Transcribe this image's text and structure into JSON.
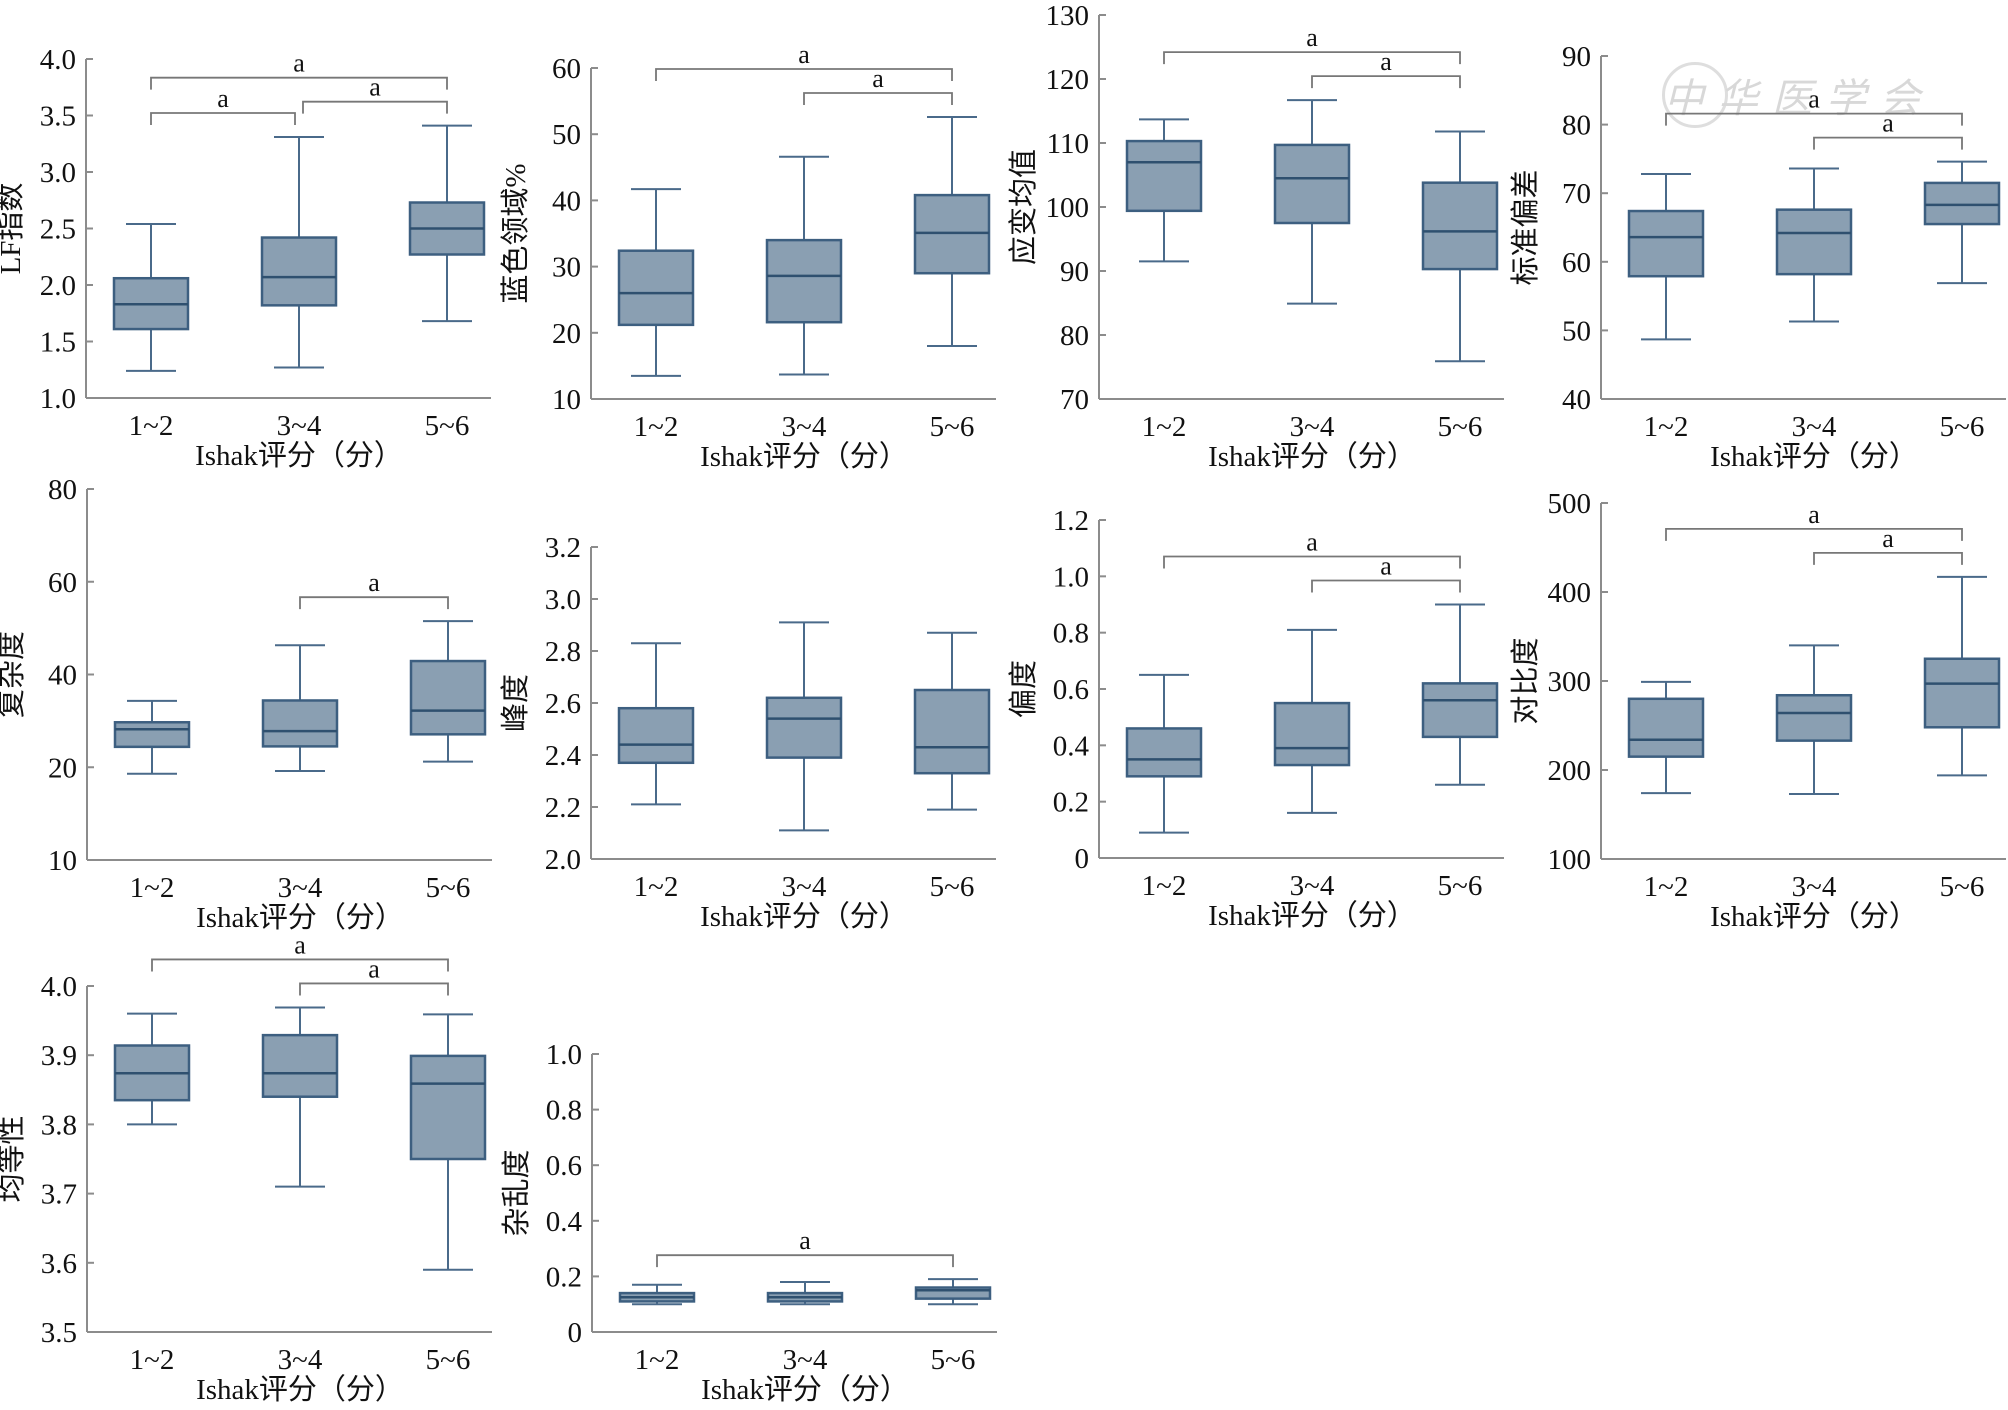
{
  "watermark": {
    "text": "中华医学会"
  },
  "chart_data": [
    {
      "type": "box",
      "id": "lf_index",
      "ylabel": "LF指数",
      "xlabel": "Ishak评分（分）",
      "categories": [
        "1~2",
        "3~4",
        "5~6"
      ],
      "yticks": [
        1.0,
        1.5,
        2.0,
        2.5,
        3.0,
        3.5,
        4.0
      ],
      "ytick_labels": [
        "1.0",
        "1.5",
        "2.0",
        "2.5",
        "3.0",
        "3.5",
        "4.0"
      ],
      "ylim": [
        1.0,
        4.0
      ],
      "boxes": [
        {
          "min": 1.24,
          "q1": 1.61,
          "median": 1.83,
          "q3": 2.06,
          "max": 2.54
        },
        {
          "min": 1.27,
          "q1": 1.82,
          "median": 2.07,
          "q3": 2.42,
          "max": 3.31
        },
        {
          "min": 1.68,
          "q1": 2.27,
          "median": 2.5,
          "q3": 2.73,
          "max": 3.41
        }
      ],
      "significance": [
        {
          "from": 0,
          "to": 2,
          "label": "a",
          "level": 2
        },
        {
          "from": 0,
          "to": 1,
          "label": "a",
          "level": 1
        },
        {
          "from": 1,
          "to": 2,
          "label": "a",
          "level": 1
        }
      ]
    },
    {
      "type": "box",
      "id": "blue_domain",
      "ylabel": "蓝色领域%",
      "xlabel": "Ishak评分（分）",
      "categories": [
        "1~2",
        "3~4",
        "5~6"
      ],
      "yticks": [
        10,
        20,
        30,
        40,
        50,
        60
      ],
      "ytick_labels": [
        "10",
        "20",
        "30",
        "40",
        "50",
        "60"
      ],
      "ylim": [
        10,
        60
      ],
      "boxes": [
        {
          "min": 13.5,
          "q1": 21.2,
          "median": 26.0,
          "q3": 32.4,
          "max": 41.7
        },
        {
          "min": 13.7,
          "q1": 21.6,
          "median": 28.6,
          "q3": 34.0,
          "max": 46.6
        },
        {
          "min": 18.0,
          "q1": 29.0,
          "median": 35.1,
          "q3": 40.8,
          "max": 52.6
        }
      ],
      "significance": [
        {
          "from": 0,
          "to": 2,
          "label": "a",
          "level": 2
        },
        {
          "from": 1,
          "to": 2,
          "label": "a",
          "level": 1
        }
      ]
    },
    {
      "type": "box",
      "id": "strain_mean",
      "ylabel": "应变均值",
      "xlabel": "Ishak评分（分）",
      "categories": [
        "1~2",
        "3~4",
        "5~6"
      ],
      "yticks": [
        70,
        80,
        90,
        100,
        110,
        120,
        130
      ],
      "ytick_labels": [
        "70",
        "80",
        "90",
        "100",
        "110",
        "120",
        "130"
      ],
      "ylim": [
        70,
        130
      ],
      "boxes": [
        {
          "min": 91.5,
          "q1": 99.4,
          "median": 107.0,
          "q3": 110.3,
          "max": 113.7
        },
        {
          "min": 84.9,
          "q1": 97.5,
          "median": 104.5,
          "q3": 109.7,
          "max": 116.7
        },
        {
          "min": 75.9,
          "q1": 90.3,
          "median": 96.2,
          "q3": 103.8,
          "max": 111.8
        }
      ],
      "significance": [
        {
          "from": 0,
          "to": 2,
          "label": "a",
          "level": 2
        },
        {
          "from": 1,
          "to": 2,
          "label": "a",
          "level": 1
        }
      ]
    },
    {
      "type": "box",
      "id": "std_dev",
      "ylabel": "标准偏差",
      "xlabel": "Ishak评分（分）",
      "categories": [
        "1~2",
        "3~4",
        "5~6"
      ],
      "yticks": [
        40,
        50,
        60,
        70,
        80,
        90
      ],
      "ytick_labels": [
        "40",
        "50",
        "60",
        "70",
        "80",
        "90"
      ],
      "ylim": [
        40,
        90
      ],
      "boxes": [
        {
          "min": 48.7,
          "q1": 57.9,
          "median": 63.6,
          "q3": 67.4,
          "max": 72.8
        },
        {
          "min": 51.3,
          "q1": 58.2,
          "median": 64.2,
          "q3": 67.6,
          "max": 73.6
        },
        {
          "min": 56.9,
          "q1": 65.5,
          "median": 68.3,
          "q3": 71.5,
          "max": 74.6
        }
      ],
      "significance": [
        {
          "from": 0,
          "to": 2,
          "label": "a",
          "level": 2
        },
        {
          "from": 1,
          "to": 2,
          "label": "a",
          "level": 1
        }
      ]
    },
    {
      "type": "box",
      "id": "complexity",
      "ylabel": "复杂度",
      "xlabel": "Ishak评分（分）",
      "categories": [
        "1~2",
        "3~4",
        "5~6"
      ],
      "yticks": [
        10,
        20,
        40,
        60,
        80
      ],
      "ytick_labels": [
        "10",
        "20",
        "40",
        "60",
        "80"
      ],
      "ylim": [
        10,
        80
      ],
      "axis_break": true,
      "boxes": [
        {
          "min": 19.3,
          "q1": 24.4,
          "median": 28.2,
          "q3": 29.7,
          "max": 34.3
        },
        {
          "min": 19.6,
          "q1": 24.5,
          "median": 27.8,
          "q3": 34.4,
          "max": 46.3
        },
        {
          "min": 21.2,
          "q1": 27.1,
          "median": 32.2,
          "q3": 42.9,
          "max": 51.5
        }
      ],
      "significance": [
        {
          "from": 1,
          "to": 2,
          "label": "a",
          "level": 1
        }
      ]
    },
    {
      "type": "box",
      "id": "kurtosis",
      "ylabel": "峰度",
      "xlabel": "Ishak评分（分）",
      "categories": [
        "1~2",
        "3~4",
        "5~6"
      ],
      "yticks": [
        2.0,
        2.2,
        2.4,
        2.6,
        2.8,
        3.0,
        3.2
      ],
      "ytick_labels": [
        "2.0",
        "2.2",
        "2.4",
        "2.6",
        "2.8",
        "3.0",
        "3.2"
      ],
      "ylim": [
        2.0,
        3.2
      ],
      "boxes": [
        {
          "min": 2.21,
          "q1": 2.37,
          "median": 2.44,
          "q3": 2.58,
          "max": 2.83
        },
        {
          "min": 2.11,
          "q1": 2.39,
          "median": 2.54,
          "q3": 2.62,
          "max": 2.91
        },
        {
          "min": 2.19,
          "q1": 2.33,
          "median": 2.43,
          "q3": 2.65,
          "max": 2.87
        }
      ],
      "significance": []
    },
    {
      "type": "box",
      "id": "skewness",
      "ylabel": "偏度",
      "xlabel": "Ishak评分（分）",
      "categories": [
        "1~2",
        "3~4",
        "5~6"
      ],
      "yticks": [
        0,
        0.2,
        0.4,
        0.6,
        0.8,
        1.0,
        1.2
      ],
      "ytick_labels": [
        "0",
        "0.2",
        "0.4",
        "0.6",
        "0.8",
        "1.0",
        "1.2"
      ],
      "ylim": [
        0,
        1.2
      ],
      "boxes": [
        {
          "min": 0.09,
          "q1": 0.29,
          "median": 0.35,
          "q3": 0.46,
          "max": 0.65
        },
        {
          "min": 0.16,
          "q1": 0.33,
          "median": 0.39,
          "q3": 0.55,
          "max": 0.81
        },
        {
          "min": 0.26,
          "q1": 0.43,
          "median": 0.56,
          "q3": 0.62,
          "max": 0.9
        }
      ],
      "significance": [
        {
          "from": 0,
          "to": 2,
          "label": "a",
          "level": 2
        },
        {
          "from": 1,
          "to": 2,
          "label": "a",
          "level": 1
        }
      ]
    },
    {
      "type": "box",
      "id": "contrast",
      "ylabel": "对比度",
      "xlabel": "Ishak评分（分）",
      "categories": [
        "1~2",
        "3~4",
        "5~6"
      ],
      "yticks": [
        100,
        200,
        300,
        400,
        500
      ],
      "ytick_labels": [
        "100",
        "200",
        "300",
        "400",
        "500"
      ],
      "ylim": [
        100,
        500
      ],
      "boxes": [
        {
          "min": 174,
          "q1": 215,
          "median": 234,
          "q3": 280,
          "max": 299
        },
        {
          "min": 173,
          "q1": 233,
          "median": 264,
          "q3": 284,
          "max": 340
        },
        {
          "min": 194,
          "q1": 248,
          "median": 297,
          "q3": 325,
          "max": 417
        }
      ],
      "significance": [
        {
          "from": 0,
          "to": 2,
          "label": "a",
          "level": 2
        },
        {
          "from": 1,
          "to": 2,
          "label": "a",
          "level": 1
        }
      ]
    },
    {
      "type": "box",
      "id": "homogeneity",
      "ylabel": "均等性",
      "xlabel": "Ishak评分（分）",
      "categories": [
        "1~2",
        "3~4",
        "5~6"
      ],
      "yticks": [
        3.5,
        3.6,
        3.7,
        3.8,
        3.9,
        4.0
      ],
      "ytick_labels": [
        "3.5",
        "3.6",
        "3.7",
        "3.8",
        "3.9",
        "4.0"
      ],
      "ylim": [
        3.5,
        4.0
      ],
      "boxes": [
        {
          "min": 3.8,
          "q1": 3.835,
          "median": 3.874,
          "q3": 3.914,
          "max": 3.96
        },
        {
          "min": 3.71,
          "q1": 3.84,
          "median": 3.874,
          "q3": 3.929,
          "max": 3.969
        },
        {
          "min": 3.59,
          "q1": 3.75,
          "median": 3.859,
          "q3": 3.899,
          "max": 3.959
        }
      ],
      "significance": [
        {
          "from": 0,
          "to": 2,
          "label": "a",
          "level": 2
        },
        {
          "from": 1,
          "to": 2,
          "label": "a",
          "level": 1
        }
      ]
    },
    {
      "type": "box",
      "id": "clutter",
      "ylabel": "杂乱度",
      "xlabel": "Ishak评分（分）",
      "categories": [
        "1~2",
        "3~4",
        "5~6"
      ],
      "yticks": [
        0,
        0.2,
        0.4,
        0.6,
        0.8,
        1.0
      ],
      "ytick_labels": [
        "0",
        "0.2",
        "0.4",
        "0.6",
        "0.8",
        "1.0"
      ],
      "ylim": [
        0,
        1.0
      ],
      "boxes": [
        {
          "min": 0.1,
          "q1": 0.11,
          "median": 0.125,
          "q3": 0.14,
          "max": 0.17
        },
        {
          "min": 0.1,
          "q1": 0.11,
          "median": 0.125,
          "q3": 0.14,
          "max": 0.18
        },
        {
          "min": 0.1,
          "q1": 0.12,
          "median": 0.15,
          "q3": 0.16,
          "max": 0.19
        }
      ],
      "significance": [
        {
          "from": 0,
          "to": 2,
          "label": "a",
          "level": 1
        }
      ]
    }
  ]
}
